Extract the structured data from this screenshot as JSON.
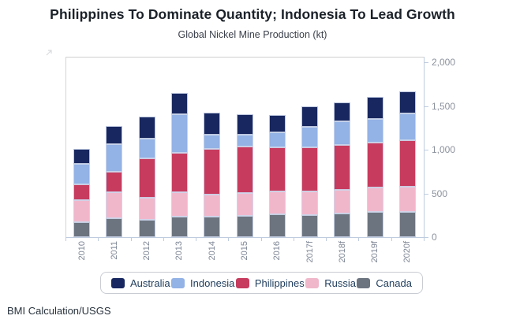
{
  "header": {
    "title": "Philippines To Dominate Quantity; Indonesia To Lead Growth",
    "subtitle": "Global Nickel Mine Production (kt)"
  },
  "footer": {
    "source": "BMI Calculation/USGS"
  },
  "colors": {
    "australia": "#18275f",
    "indonesia": "#93b2e5",
    "philippines": "#c73b5e",
    "russia": "#f0b7cb",
    "canada": "#6c7480",
    "axis_line": "#bfccdf",
    "plot_border": "#cfcfcf",
    "tick_label": "#8b919c",
    "legend_text": "#23405f"
  },
  "chart_data": {
    "type": "bar",
    "stacked": true,
    "title": "Philippines To Dominate Quantity; Indonesia To Lead Growth",
    "subtitle": "Global Nickel Mine Production (kt)",
    "unit": "kt",
    "categories": [
      "2010",
      "2011",
      "2012",
      "2013",
      "2014",
      "2015",
      "2016",
      "2017f",
      "2018f",
      "2019f",
      "2020f"
    ],
    "series": [
      {
        "name": "Australia",
        "color_key": "australia",
        "values": [
          170,
          210,
          245,
          235,
          245,
          235,
          200,
          240,
          225,
          250,
          255
        ]
      },
      {
        "name": "Indonesia",
        "color_key": "indonesia",
        "values": [
          240,
          315,
          230,
          450,
          165,
          130,
          170,
          235,
          270,
          270,
          300
        ]
      },
      {
        "name": "Philippines",
        "color_key": "philippines",
        "values": [
          175,
          235,
          445,
          450,
          525,
          535,
          505,
          505,
          510,
          520,
          530
        ]
      },
      {
        "name": "Russia",
        "color_key": "russia",
        "values": [
          255,
          290,
          255,
          275,
          250,
          260,
          255,
          265,
          270,
          280,
          290
        ]
      },
      {
        "name": "Canada",
        "color_key": "canada",
        "values": [
          170,
          220,
          200,
          235,
          235,
          245,
          265,
          255,
          270,
          285,
          290
        ]
      }
    ],
    "stack_order_bottom_to_top": [
      "Canada",
      "Russia",
      "Philippines",
      "Indonesia",
      "Australia"
    ],
    "y_axis": {
      "side": "right",
      "tick_labels": [
        "0",
        "500",
        "1,000",
        "1,500",
        "2,000"
      ],
      "tick_values": [
        0,
        500,
        1000,
        1500,
        2000
      ],
      "min": 0,
      "max": 2000,
      "grid": false
    },
    "legend_position": "bottom"
  },
  "legend": {
    "items": [
      {
        "label": "Australia",
        "color_key": "australia"
      },
      {
        "label": "Indonesia",
        "color_key": "indonesia"
      },
      {
        "label": "Philippines",
        "color_key": "philippines"
      },
      {
        "label": "Russia",
        "color_key": "russia"
      },
      {
        "label": "Canada",
        "color_key": "canada"
      }
    ]
  },
  "icons": {
    "export": "export-arrow-icon"
  }
}
